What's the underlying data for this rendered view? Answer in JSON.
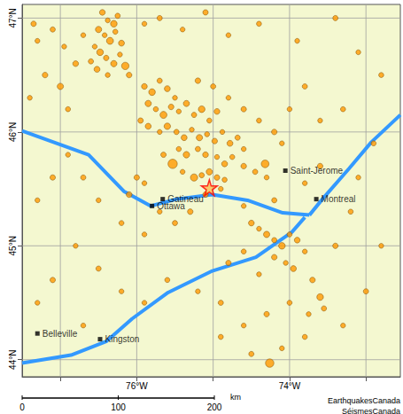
{
  "chart_data": {
    "type": "scatter",
    "xlim": [
      -77.5,
      -72.55
    ],
    "ylim": [
      43.85,
      47.12
    ],
    "xticks": [
      {
        "value": -77,
        "label": null
      },
      {
        "value": -76,
        "label": "76°W"
      },
      {
        "value": -75,
        "label": null
      },
      {
        "value": -74,
        "label": "74°W"
      },
      {
        "value": -73,
        "label": null
      }
    ],
    "yticks": [
      {
        "value": 44,
        "label": "44°N"
      },
      {
        "value": 45,
        "label": "45°N"
      },
      {
        "value": 46,
        "label": "46°N"
      },
      {
        "value": 47,
        "label": "47°N"
      }
    ],
    "grid": true,
    "color": "#ff9900",
    "events": [
      [
        -76.45,
        47.05,
        2.5
      ],
      [
        -76.38,
        46.98,
        2.0
      ],
      [
        -76.3,
        46.95,
        3.0
      ],
      [
        -76.25,
        47.02,
        2.2
      ],
      [
        -76.5,
        46.9,
        2.8
      ],
      [
        -76.42,
        46.85,
        2.0
      ],
      [
        -76.35,
        46.8,
        3.2
      ],
      [
        -76.28,
        46.88,
        2.1
      ],
      [
        -76.2,
        46.78,
        2.6
      ],
      [
        -76.55,
        46.75,
        2.0
      ],
      [
        -76.48,
        46.7,
        3.0
      ],
      [
        -76.4,
        46.65,
        2.3
      ],
      [
        -76.3,
        46.6,
        2.8
      ],
      [
        -76.22,
        46.68,
        2.0
      ],
      [
        -76.15,
        46.58,
        3.4
      ],
      [
        -76.6,
        46.62,
        2.2
      ],
      [
        -76.52,
        46.55,
        2.6
      ],
      [
        -76.38,
        46.5,
        2.0
      ],
      [
        -76.1,
        46.5,
        2.4
      ],
      [
        -76.7,
        46.85,
        2.0
      ],
      [
        -76.8,
        46.6,
        2.5
      ],
      [
        -76.95,
        46.75,
        2.0
      ],
      [
        -77.1,
        46.9,
        2.2
      ],
      [
        -77.3,
        46.8,
        2.0
      ],
      [
        -77.2,
        46.5,
        2.4
      ],
      [
        -77.4,
        46.3,
        2.0
      ],
      [
        -77.0,
        46.4,
        2.8
      ],
      [
        -76.9,
        46.2,
        2.1
      ],
      [
        -77.35,
        46.95,
        2.3
      ],
      [
        -75.9,
        46.95,
        2.0
      ],
      [
        -75.7,
        47.0,
        2.2
      ],
      [
        -75.4,
        46.9,
        2.0
      ],
      [
        -75.1,
        47.05,
        2.3
      ],
      [
        -74.8,
        46.85,
        2.0
      ],
      [
        -74.4,
        46.95,
        2.1
      ],
      [
        -73.9,
        46.8,
        2.0
      ],
      [
        -73.4,
        47.0,
        2.2
      ],
      [
        -73.1,
        46.7,
        2.0
      ],
      [
        -72.8,
        46.5,
        2.1
      ],
      [
        -75.9,
        46.4,
        2.5
      ],
      [
        -75.8,
        46.35,
        3.0
      ],
      [
        -75.7,
        46.45,
        2.2
      ],
      [
        -75.6,
        46.38,
        2.6
      ],
      [
        -75.5,
        46.3,
        2.0
      ],
      [
        -75.85,
        46.25,
        2.8
      ],
      [
        -75.75,
        46.2,
        2.1
      ],
      [
        -75.65,
        46.15,
        3.2
      ],
      [
        -75.55,
        46.22,
        2.4
      ],
      [
        -75.45,
        46.18,
        2.0
      ],
      [
        -75.35,
        46.25,
        2.7
      ],
      [
        -75.25,
        46.15,
        2.2
      ],
      [
        -75.15,
        46.2,
        3.0
      ],
      [
        -75.05,
        46.1,
        2.1
      ],
      [
        -74.95,
        46.18,
        2.5
      ],
      [
        -75.95,
        46.1,
        2.3
      ],
      [
        -75.85,
        46.05,
        2.6
      ],
      [
        -75.7,
        46.0,
        2.0
      ],
      [
        -75.6,
        46.05,
        2.9
      ],
      [
        -75.48,
        46.0,
        2.2
      ],
      [
        -75.38,
        45.95,
        2.6
      ],
      [
        -75.28,
        46.02,
        2.0
      ],
      [
        -75.18,
        45.95,
        2.8
      ],
      [
        -75.08,
        45.98,
        2.1
      ],
      [
        -74.98,
        45.92,
        2.4
      ],
      [
        -74.88,
        46.0,
        2.0
      ],
      [
        -74.78,
        45.9,
        2.6
      ],
      [
        -74.68,
        45.95,
        2.2
      ],
      [
        -74.6,
        45.85,
        2.0
      ],
      [
        -75.53,
        45.72,
        4.5
      ],
      [
        -75.65,
        45.8,
        2.3
      ],
      [
        -75.45,
        45.85,
        2.1
      ],
      [
        -75.35,
        45.8,
        2.9
      ],
      [
        -75.2,
        45.85,
        2.2
      ],
      [
        -75.1,
        45.8,
        2.5
      ],
      [
        -74.95,
        45.78,
        2.0
      ],
      [
        -74.85,
        45.72,
        2.6
      ],
      [
        -74.75,
        45.78,
        2.1
      ],
      [
        -74.6,
        45.7,
        2.4
      ],
      [
        -74.32,
        45.72,
        3.6
      ],
      [
        -74.45,
        45.65,
        2.2
      ],
      [
        -74.3,
        45.6,
        2.0
      ],
      [
        -75.05,
        45.65,
        2.8
      ],
      [
        -75.15,
        45.62,
        2.2
      ],
      [
        -74.95,
        45.6,
        2.4
      ],
      [
        -74.85,
        45.58,
        2.1
      ],
      [
        -75.25,
        45.6,
        3.3
      ],
      [
        -75.4,
        45.65,
        2.0
      ],
      [
        -75.1,
        45.45,
        2.3
      ],
      [
        -74.9,
        45.5,
        2.0
      ],
      [
        -75.2,
        46.45,
        2.4
      ],
      [
        -75.0,
        46.4,
        2.2
      ],
      [
        -74.8,
        46.3,
        2.0
      ],
      [
        -74.6,
        46.2,
        2.3
      ],
      [
        -74.4,
        46.1,
        2.1
      ],
      [
        -74.2,
        46.0,
        2.4
      ],
      [
        -74.1,
        45.9,
        2.0
      ],
      [
        -74.0,
        46.2,
        2.0
      ],
      [
        -73.8,
        46.4,
        2.2
      ],
      [
        -73.6,
        46.1,
        2.0
      ],
      [
        -73.3,
        46.2,
        2.1
      ],
      [
        -76.0,
        45.6,
        2.3
      ],
      [
        -75.9,
        45.55,
        2.0
      ],
      [
        -76.1,
        45.45,
        2.5
      ],
      [
        -75.7,
        45.3,
        2.0
      ],
      [
        -75.5,
        45.2,
        2.2
      ],
      [
        -75.3,
        45.3,
        2.4
      ],
      [
        -75.9,
        45.1,
        2.0
      ],
      [
        -76.2,
        45.2,
        2.1
      ],
      [
        -76.5,
        45.4,
        2.0
      ],
      [
        -76.7,
        45.6,
        2.2
      ],
      [
        -76.9,
        45.8,
        2.0
      ],
      [
        -77.1,
        45.6,
        2.3
      ],
      [
        -77.3,
        45.4,
        2.0
      ],
      [
        -74.5,
        45.2,
        2.5
      ],
      [
        -74.4,
        45.15,
        2.0
      ],
      [
        -74.3,
        45.1,
        2.8
      ],
      [
        -74.2,
        45.05,
        2.2
      ],
      [
        -74.1,
        45.0,
        3.0
      ],
      [
        -74.0,
        45.1,
        2.1
      ],
      [
        -73.9,
        45.05,
        2.5
      ],
      [
        -73.8,
        44.95,
        2.0
      ],
      [
        -74.2,
        44.9,
        2.4
      ],
      [
        -74.05,
        44.85,
        2.0
      ],
      [
        -73.95,
        44.8,
        2.6
      ],
      [
        -74.6,
        44.95,
        2.1
      ],
      [
        -74.8,
        44.85,
        2.3
      ],
      [
        -74.4,
        44.75,
        2.0
      ],
      [
        -73.7,
        44.7,
        2.4
      ],
      [
        -73.6,
        44.55,
        3.0
      ],
      [
        -73.55,
        44.45,
        2.2
      ],
      [
        -73.75,
        44.4,
        2.0
      ],
      [
        -74.0,
        44.5,
        2.1
      ],
      [
        -74.3,
        44.4,
        2.3
      ],
      [
        -74.6,
        44.3,
        2.0
      ],
      [
        -74.9,
        44.5,
        2.2
      ],
      [
        -75.2,
        44.6,
        2.0
      ],
      [
        -75.6,
        44.7,
        2.1
      ],
      [
        -75.9,
        44.5,
        2.0
      ],
      [
        -76.2,
        44.6,
        2.0
      ],
      [
        -76.5,
        44.8,
        2.2
      ],
      [
        -76.8,
        45.0,
        2.0
      ],
      [
        -77.1,
        44.7,
        2.3
      ],
      [
        -77.3,
        44.5,
        2.0
      ],
      [
        -76.7,
        44.3,
        2.0
      ],
      [
        -74.9,
        44.2,
        2.1
      ],
      [
        -74.5,
        44.05,
        2.2
      ],
      [
        -74.1,
        44.1,
        2.0
      ],
      [
        -74.26,
        43.97,
        4.0
      ],
      [
        -73.8,
        44.2,
        2.1
      ],
      [
        -73.3,
        44.3,
        2.0
      ],
      [
        -73.0,
        44.6,
        2.2
      ],
      [
        -72.8,
        45.0,
        2.0
      ],
      [
        -73.2,
        45.3,
        2.1
      ],
      [
        -73.4,
        45.0,
        2.3
      ],
      [
        -73.1,
        45.6,
        2.0
      ],
      [
        -72.9,
        45.9,
        2.1
      ],
      [
        -73.6,
        45.7,
        2.4
      ],
      [
        -73.8,
        45.55,
        2.0
      ],
      [
        -74.2,
        45.4,
        2.2
      ],
      [
        -74.6,
        45.35,
        2.0
      ]
    ],
    "star": {
      "position": [
        -75.05,
        45.51
      ],
      "color": "#ff0000"
    },
    "cities": [
      {
        "label": "Gatineau",
        "position": [
          -75.66,
          45.41
        ]
      },
      {
        "label": "Ottawa",
        "position": [
          -75.8,
          45.35
        ]
      },
      {
        "label": "Saint-Jerome",
        "position": [
          -74.055,
          45.66
        ]
      },
      {
        "label": "Montreal",
        "position": [
          -73.65,
          45.41
        ]
      },
      {
        "label": "Belleville",
        "position": [
          -77.3,
          44.23
        ]
      },
      {
        "label": "Kingston",
        "position": [
          -76.48,
          44.18
        ]
      }
    ],
    "water": {
      "color": "#3399ff",
      "lines": [
        [
          [
            -77.5,
            46.01
          ],
          [
            -76.63,
            45.8
          ],
          [
            -76.17,
            45.48
          ],
          [
            -75.82,
            45.35
          ],
          [
            -75.48,
            45.41
          ],
          [
            -75.01,
            45.45
          ],
          [
            -74.55,
            45.4
          ],
          [
            -74.09,
            45.29
          ],
          [
            -73.74,
            45.27
          ]
        ],
        [
          [
            -73.8,
            45.25
          ],
          [
            -73.97,
            45.12
          ],
          [
            -74.44,
            44.9
          ],
          [
            -75.01,
            44.78
          ],
          [
            -75.59,
            44.59
          ],
          [
            -76.06,
            44.36
          ],
          [
            -76.4,
            44.16
          ],
          [
            -76.86,
            44.04
          ],
          [
            -77.5,
            43.97
          ]
        ],
        [
          [
            -73.74,
            45.27
          ],
          [
            -73.57,
            45.41
          ],
          [
            -73.22,
            45.68
          ],
          [
            -72.93,
            45.91
          ],
          [
            -72.55,
            46.15
          ]
        ]
      ]
    },
    "scale_bar": {
      "ticks": [
        0,
        100,
        200
      ],
      "unit": "km"
    },
    "credits": [
      "EarthquakesCanada",
      "SéismesCanada"
    ]
  }
}
